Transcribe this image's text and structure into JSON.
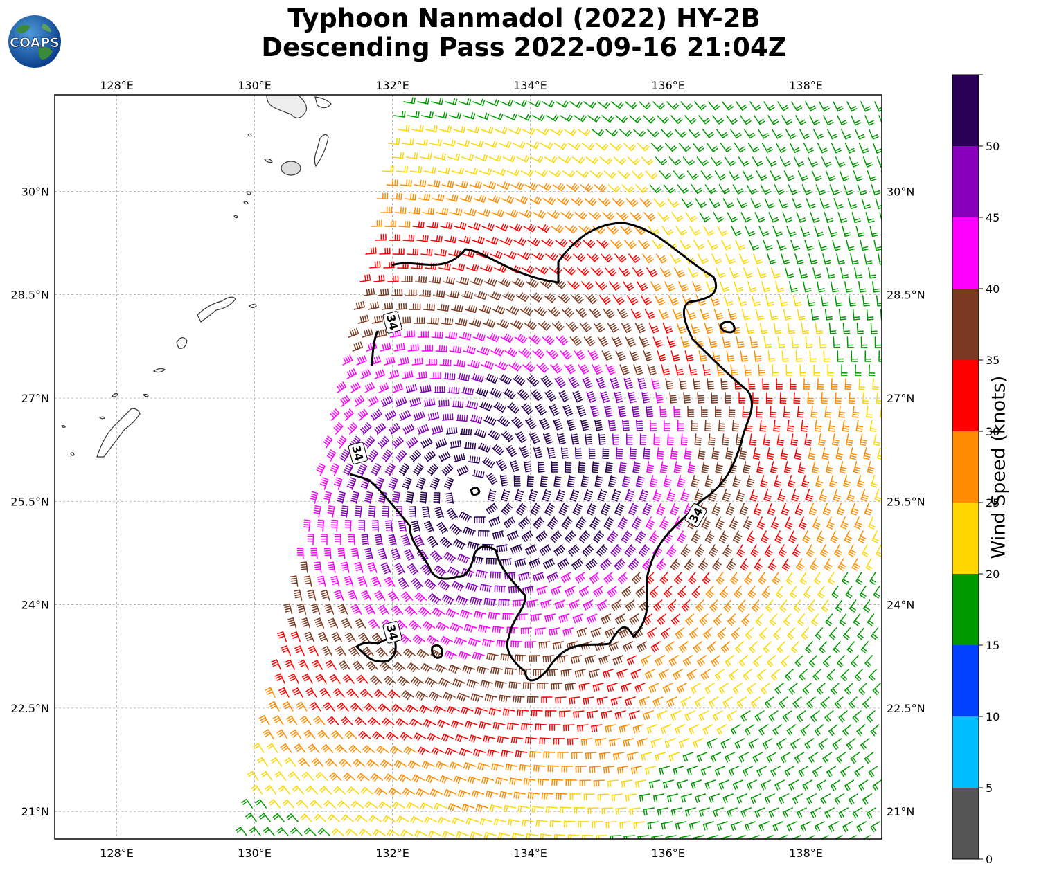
{
  "title": {
    "line1": "Typhoon Nanmadol (2022) HY-2B",
    "line2": "Descending Pass 2022-09-16 21:04Z"
  },
  "logo": {
    "text": "COAPS",
    "icon": "globe-logo-icon"
  },
  "map": {
    "lon_range": [
      127.1,
      139.1
    ],
    "lat_range": [
      20.6,
      31.4
    ],
    "lon_ticks": [
      {
        "value": 128,
        "label": "128°E"
      },
      {
        "value": 130,
        "label": "130°E"
      },
      {
        "value": 132,
        "label": "132°E"
      },
      {
        "value": 134,
        "label": "134°E"
      },
      {
        "value": 136,
        "label": "136°E"
      },
      {
        "value": 138,
        "label": "138°E"
      }
    ],
    "lat_ticks": [
      {
        "value": 21,
        "label": "21°N"
      },
      {
        "value": 22.5,
        "label": "22.5°N"
      },
      {
        "value": 24,
        "label": "24°N"
      },
      {
        "value": 25.5,
        "label": "25.5°N"
      },
      {
        "value": 27,
        "label": "27°N"
      },
      {
        "value": 28.5,
        "label": "28.5°N"
      },
      {
        "value": 30,
        "label": "30°N"
      }
    ],
    "gridlines": true,
    "storm_center": {
      "lon": 133.2,
      "lat": 25.65
    },
    "contour": {
      "label": "34",
      "labels": [
        {
          "lon": 132.0,
          "lat": 28.1
        },
        {
          "lon": 131.5,
          "lat": 26.2
        },
        {
          "lon": 136.4,
          "lat": 25.3
        },
        {
          "lon": 132.0,
          "lat": 23.6
        }
      ]
    }
  },
  "colorbar": {
    "title": "Wind Speed (knots)",
    "bins": [
      {
        "min": 0,
        "max": 5,
        "color": "#555555"
      },
      {
        "min": 5,
        "max": 10,
        "color": "#00bfff"
      },
      {
        "min": 10,
        "max": 15,
        "color": "#0040ff"
      },
      {
        "min": 15,
        "max": 20,
        "color": "#009900"
      },
      {
        "min": 20,
        "max": 25,
        "color": "#ffd700"
      },
      {
        "min": 25,
        "max": 30,
        "color": "#ff8c00"
      },
      {
        "min": 30,
        "max": 35,
        "color": "#ff0000"
      },
      {
        "min": 35,
        "max": 40,
        "color": "#7b3a22"
      },
      {
        "min": 40,
        "max": 45,
        "color": "#ff00ff"
      },
      {
        "min": 45,
        "max": 50,
        "color": "#8800bb"
      },
      {
        "min": 50,
        "max": 55,
        "color": "#2a0057"
      }
    ],
    "tick_labels": [
      "0",
      "5",
      "10",
      "15",
      "20",
      "25",
      "30",
      "35",
      "40",
      "45",
      "50"
    ]
  }
}
